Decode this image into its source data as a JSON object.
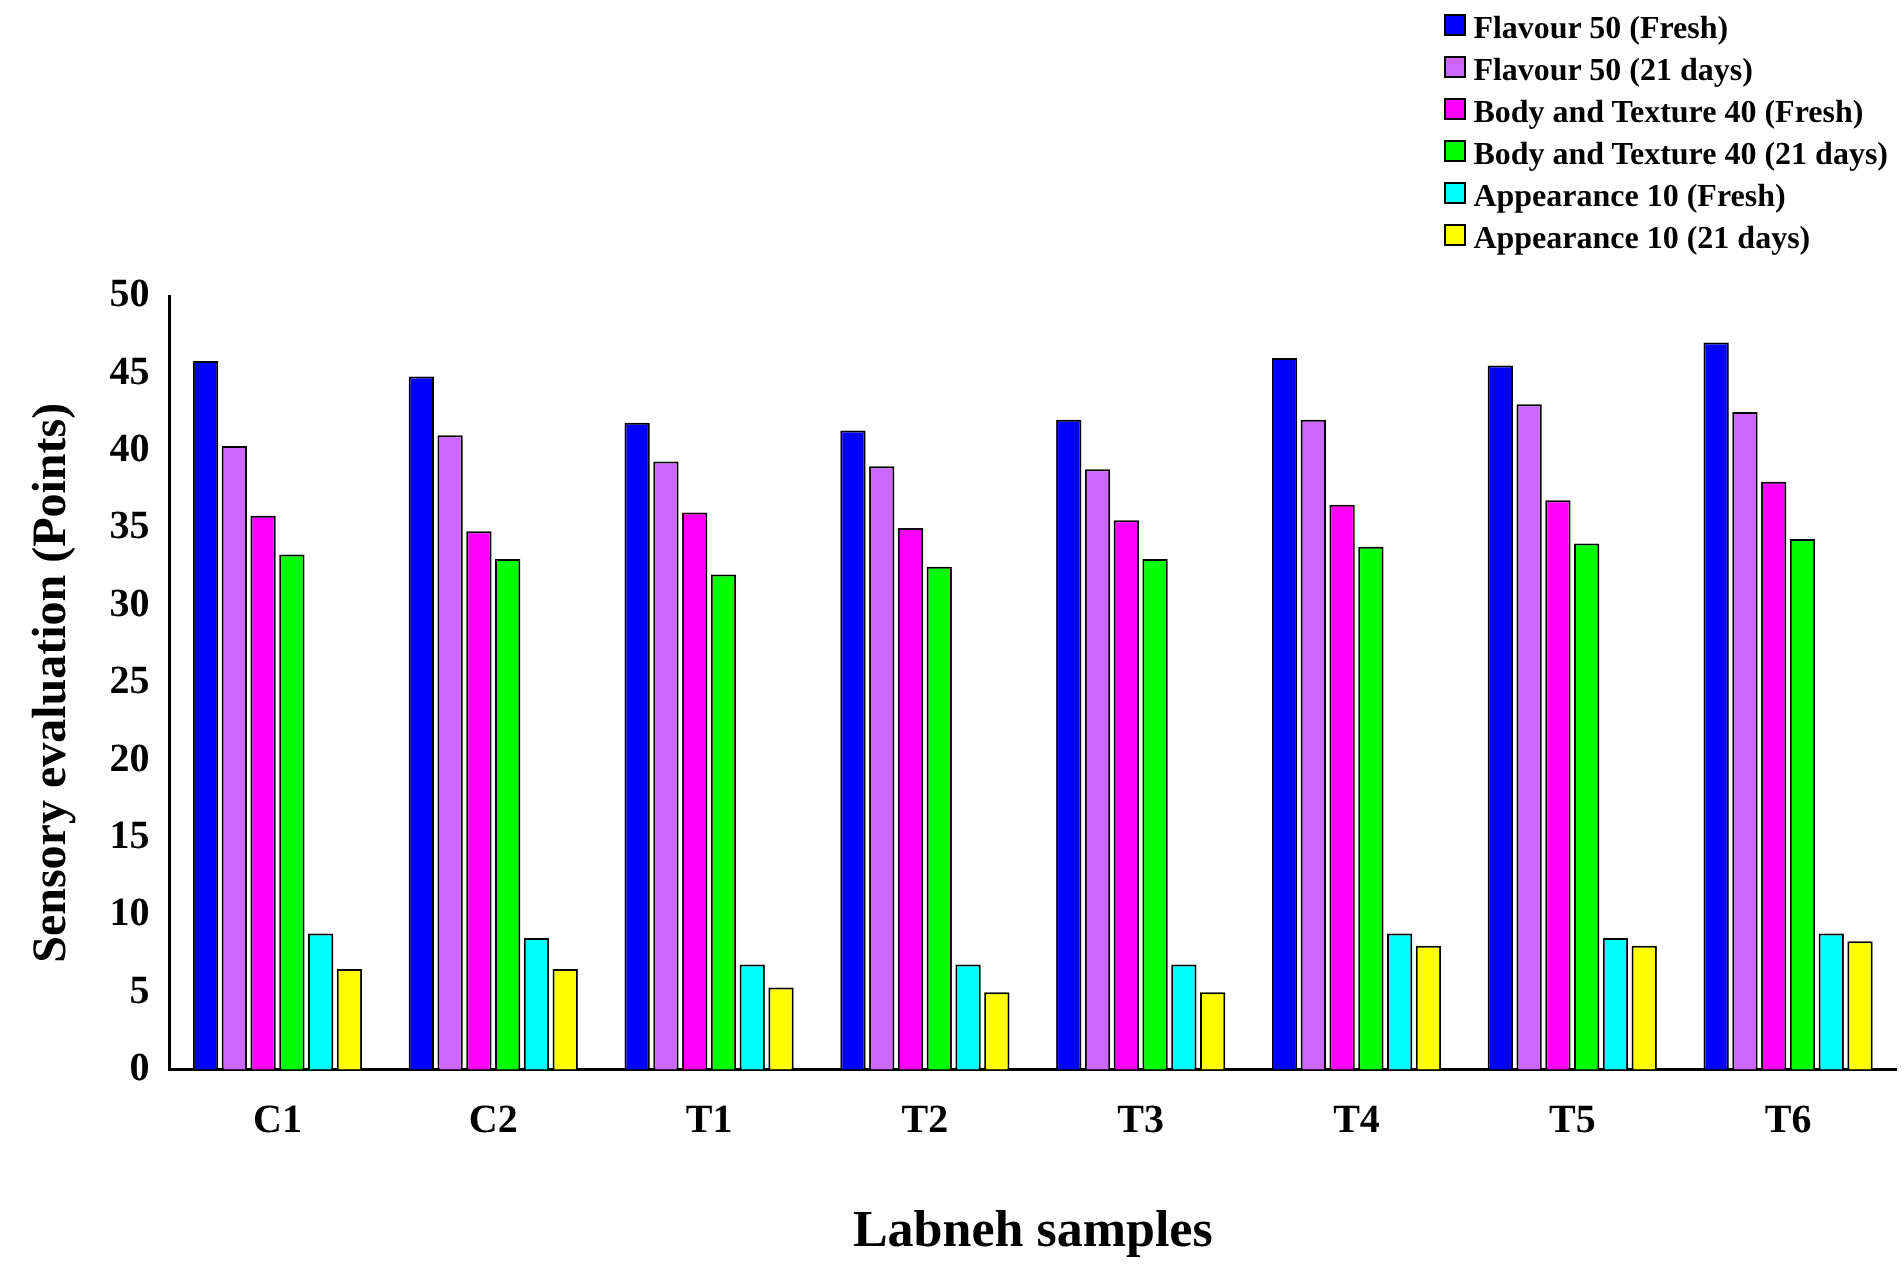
{
  "chart_data": {
    "type": "bar",
    "xlabel": "Labneh samples",
    "ylabel": "Sensory evaluation (Points)",
    "categories": [
      "C1",
      "C2",
      "T1",
      "T2",
      "T3",
      "T4",
      "T5",
      "T6"
    ],
    "series": [
      {
        "name": "Flavour 50 (Fresh)",
        "color": "#0000ff",
        "values": [
          45.8,
          44.8,
          41.8,
          41.3,
          42.0,
          46.0,
          45.5,
          47.0
        ]
      },
      {
        "name": "Flavour 50 (21 days)",
        "color": "#cc66ff",
        "values": [
          40.3,
          41.0,
          39.3,
          39.0,
          38.8,
          42.0,
          43.0,
          42.5
        ]
      },
      {
        "name": "Body and Texture 40 (Fresh)",
        "color": "#ff00ff",
        "values": [
          35.8,
          34.8,
          36.0,
          35.0,
          35.5,
          36.5,
          36.8,
          38.0
        ]
      },
      {
        "name": "Body and Texture 40 (21 days)",
        "color": "#00ff00",
        "values": [
          33.3,
          33.0,
          32.0,
          32.5,
          33.0,
          33.8,
          34.0,
          34.3
        ]
      },
      {
        "name": "Appearance 10 (Fresh)",
        "color": "#00ffff",
        "values": [
          8.8,
          8.5,
          6.8,
          6.8,
          6.8,
          8.8,
          8.5,
          8.8
        ]
      },
      {
        "name": "Appearance 10 (21 days)",
        "color": "#ffff00",
        "values": [
          6.5,
          6.5,
          5.3,
          5.0,
          5.0,
          8.0,
          8.0,
          8.3
        ]
      }
    ],
    "ylim": [
      0,
      50
    ],
    "yticks": [
      0,
      5,
      10,
      15,
      20,
      25,
      30,
      35,
      40,
      45,
      50
    ],
    "grid": false,
    "legend": "top right"
  }
}
